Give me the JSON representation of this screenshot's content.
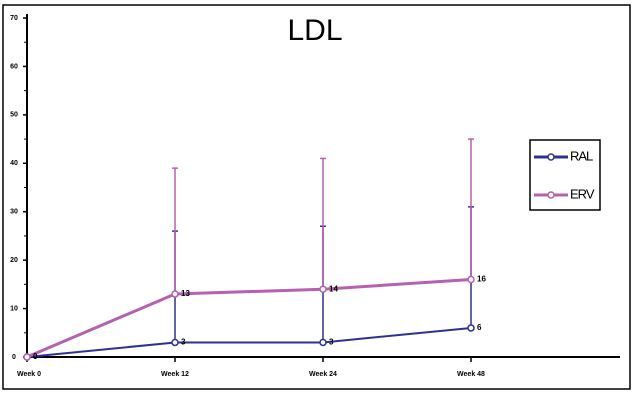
{
  "chart_data": {
    "type": "line",
    "title": "LDL",
    "categories": [
      "Week 0",
      "Week 12",
      "Week 24",
      "Week 48"
    ],
    "series": [
      {
        "name": "RAL",
        "color": "#2e3192",
        "values": [
          0,
          3,
          3,
          6
        ],
        "errors": [
          0,
          23,
          24,
          25
        ]
      },
      {
        "name": "ERV",
        "color": "#b560b0",
        "values": [
          0,
          13,
          14,
          16
        ],
        "errors": [
          0,
          26,
          27,
          29
        ]
      }
    ],
    "ylim": [
      0,
      70
    ],
    "yticks": [
      0,
      10,
      20,
      30,
      40,
      50,
      60,
      70
    ],
    "grid": false,
    "legend": "right"
  }
}
